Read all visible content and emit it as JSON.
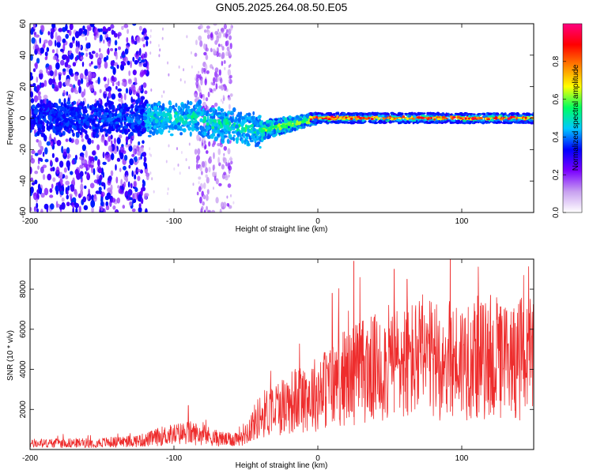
{
  "title": "GN05.2025.264.08.50.E05",
  "colors": {
    "snr_line": "#ee2d2d",
    "axis": "#000000",
    "background": "#ffffff"
  },
  "colorbar": {
    "label": "Normalized spectral amplitude",
    "ticks": [
      "0.0",
      "0.2",
      "0.4",
      "0.6",
      "0.8"
    ],
    "stops": [
      "#ffffff",
      "#c8a0f0",
      "#7a00ff",
      "#0000ff",
      "#00c8ff",
      "#00ff60",
      "#ffff00",
      "#ff8000",
      "#ff0000",
      "#ff0080"
    ]
  },
  "chart_data": [
    {
      "type": "heatmap",
      "xlabel": "Height of straight line (km)",
      "ylabel": "Frequency (Hz)",
      "xlim": [
        -200,
        150
      ],
      "ylim": [
        -60,
        60
      ],
      "xticks": [
        "-200",
        "-100",
        "0",
        "100"
      ],
      "yticks": [
        "-60",
        "-40",
        "-20",
        "0",
        "20",
        "40",
        "60"
      ],
      "value_range": [
        0,
        1
      ],
      "features": [
        {
          "region": "x -200 to -120",
          "description_values": {
            "spread_hz": 60,
            "peak_amplitude": 0.35
          }
        },
        {
          "region": "x -85 to -60",
          "description_values": {
            "spread_hz": 60,
            "peak_amplitude": 0.2
          }
        },
        {
          "region": "x -120 to -40",
          "description_values": {
            "center_hz": -5,
            "width_hz": 12,
            "peak_amplitude": 0.45
          }
        },
        {
          "region": "x -40 to 150",
          "description_values": {
            "center_hz": 0,
            "width_hz": 4,
            "peak_amplitude": 0.95
          }
        }
      ]
    },
    {
      "type": "line",
      "xlabel": "Height of straight line (km)",
      "ylabel": "SNR (10 * v/v)",
      "xlim": [
        -200,
        150
      ],
      "ylim": [
        0,
        9500
      ],
      "xticks": [
        "-200",
        "-100",
        "0",
        "100"
      ],
      "yticks": [
        "2000",
        "4000",
        "6000",
        "8000"
      ],
      "series": [
        {
          "x": [
            -200,
            -180,
            -160,
            -140,
            -120,
            -110,
            -100,
            -90,
            -80,
            -70,
            -60,
            -50,
            -40,
            -30,
            -20,
            -10,
            0,
            10,
            20,
            30,
            40,
            50,
            60,
            70,
            80,
            90,
            100,
            110,
            120,
            130,
            140,
            150
          ],
          "values": [
            300,
            350,
            350,
            400,
            500,
            700,
            800,
            900,
            800,
            600,
            500,
            900,
            1800,
            2200,
            2500,
            2800,
            3000,
            3500,
            3900,
            4200,
            4300,
            4600,
            4700,
            4800,
            4700,
            4700,
            4800,
            4900,
            4600,
            4700,
            4900,
            4600
          ],
          "peaks": [
            {
              "x": -90,
              "y": 2200
            },
            {
              "x": 10,
              "y": 7800
            },
            {
              "x": 25,
              "y": 9400
            },
            {
              "x": 53,
              "y": 9000
            },
            {
              "x": 62,
              "y": 8500
            },
            {
              "x": 92,
              "y": 9500
            },
            {
              "x": 120,
              "y": 7700
            },
            {
              "x": 137,
              "y": 6300
            }
          ]
        }
      ]
    }
  ]
}
